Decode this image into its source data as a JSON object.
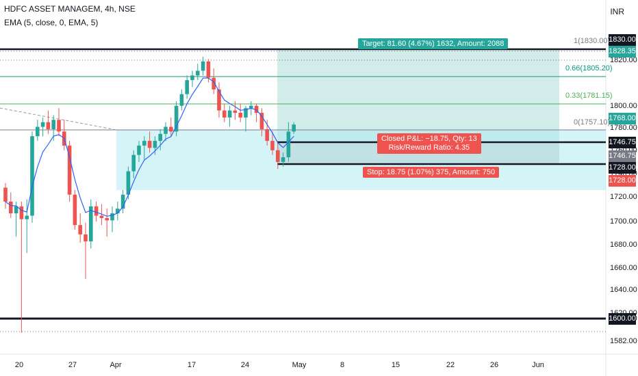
{
  "header": {
    "title": "HDFC ASSET MANAGEM, 4h, NSE",
    "indicator": "EMA (5, close, 0, EMA, 5)",
    "currency": "INR"
  },
  "position": {
    "target_label": "Target: 81.60 (4.67%) 1632, Amount: 2088",
    "closed_label": "Closed P&L: −18.75, Qty: 13",
    "ratio_label": "Risk/Reward Ratio: 4.35",
    "stop_label": "Stop: 18.75 (1.07%) 375, Amount: 750"
  },
  "fib_labels": [
    "1(1830.00)",
    "0.66(1805.20)",
    "0.33(1781.15)",
    "0(1757.10)"
  ],
  "price_axis": {
    "ticks": [
      "1820.00",
      "1800.00",
      "1780.00",
      "1760.00",
      "1740.00",
      "1720.00",
      "1700.00",
      "1680.00",
      "1660.00",
      "1640.00",
      "1620.00",
      "1600.00",
      "1582.00"
    ],
    "tags": {
      "t1830": "1830.00",
      "t1828": "1828.35",
      "t1768": "1768.00",
      "t1746a": "1746.75",
      "t1746b": "1746.75",
      "t1728a": "1728.00",
      "t1728b": "1728.00",
      "t1600": "1600.00"
    }
  },
  "time_axis": [
    "20",
    "27",
    "Apr",
    "17",
    "24",
    "May",
    "8",
    "15",
    "22",
    "26",
    "Jun"
  ],
  "colors": {
    "up": "#26a69a",
    "down": "#ef5350",
    "target_zone": "#b2dfdb",
    "stop_zone": "#cfcfcf",
    "ema": "#2962ff"
  },
  "chart_data": {
    "type": "candlestick",
    "series": [
      {
        "o": 1712,
        "h": 1716,
        "l": 1694,
        "c": 1700
      },
      {
        "o": 1700,
        "h": 1708,
        "l": 1686,
        "c": 1690
      },
      {
        "o": 1690,
        "h": 1700,
        "l": 1670,
        "c": 1696
      },
      {
        "o": 1696,
        "h": 1700,
        "l": 1588,
        "c": 1685
      },
      {
        "o": 1685,
        "h": 1702,
        "l": 1656,
        "c": 1688
      },
      {
        "o": 1688,
        "h": 1760,
        "l": 1682,
        "c": 1756
      },
      {
        "o": 1756,
        "h": 1770,
        "l": 1752,
        "c": 1764
      },
      {
        "o": 1764,
        "h": 1772,
        "l": 1756,
        "c": 1768
      },
      {
        "o": 1768,
        "h": 1778,
        "l": 1758,
        "c": 1762
      },
      {
        "o": 1762,
        "h": 1774,
        "l": 1752,
        "c": 1770
      },
      {
        "o": 1770,
        "h": 1780,
        "l": 1756,
        "c": 1760
      },
      {
        "o": 1760,
        "h": 1770,
        "l": 1744,
        "c": 1748
      },
      {
        "o": 1748,
        "h": 1752,
        "l": 1700,
        "c": 1706
      },
      {
        "o": 1706,
        "h": 1710,
        "l": 1676,
        "c": 1680
      },
      {
        "o": 1680,
        "h": 1690,
        "l": 1665,
        "c": 1672
      },
      {
        "o": 1672,
        "h": 1682,
        "l": 1634,
        "c": 1666
      },
      {
        "o": 1666,
        "h": 1702,
        "l": 1660,
        "c": 1696
      },
      {
        "o": 1696,
        "h": 1700,
        "l": 1683,
        "c": 1688
      },
      {
        "o": 1688,
        "h": 1698,
        "l": 1680,
        "c": 1686
      },
      {
        "o": 1686,
        "h": 1694,
        "l": 1670,
        "c": 1684
      },
      {
        "o": 1684,
        "h": 1696,
        "l": 1674,
        "c": 1690
      },
      {
        "o": 1690,
        "h": 1700,
        "l": 1684,
        "c": 1694
      },
      {
        "o": 1694,
        "h": 1710,
        "l": 1690,
        "c": 1706
      },
      {
        "o": 1706,
        "h": 1730,
        "l": 1702,
        "c": 1726
      },
      {
        "o": 1726,
        "h": 1744,
        "l": 1720,
        "c": 1740
      },
      {
        "o": 1740,
        "h": 1752,
        "l": 1734,
        "c": 1748
      },
      {
        "o": 1748,
        "h": 1756,
        "l": 1736,
        "c": 1752
      },
      {
        "o": 1752,
        "h": 1760,
        "l": 1742,
        "c": 1746
      },
      {
        "o": 1746,
        "h": 1756,
        "l": 1740,
        "c": 1752
      },
      {
        "o": 1752,
        "h": 1762,
        "l": 1744,
        "c": 1758
      },
      {
        "o": 1758,
        "h": 1768,
        "l": 1752,
        "c": 1764
      },
      {
        "o": 1764,
        "h": 1772,
        "l": 1756,
        "c": 1760
      },
      {
        "o": 1760,
        "h": 1786,
        "l": 1756,
        "c": 1782
      },
      {
        "o": 1782,
        "h": 1796,
        "l": 1778,
        "c": 1792
      },
      {
        "o": 1792,
        "h": 1808,
        "l": 1788,
        "c": 1804
      },
      {
        "o": 1804,
        "h": 1812,
        "l": 1798,
        "c": 1808
      },
      {
        "o": 1808,
        "h": 1818,
        "l": 1804,
        "c": 1812
      },
      {
        "o": 1812,
        "h": 1824,
        "l": 1808,
        "c": 1820
      },
      {
        "o": 1820,
        "h": 1822,
        "l": 1802,
        "c": 1806
      },
      {
        "o": 1806,
        "h": 1814,
        "l": 1792,
        "c": 1796
      },
      {
        "o": 1796,
        "h": 1802,
        "l": 1772,
        "c": 1778
      },
      {
        "o": 1778,
        "h": 1784,
        "l": 1768,
        "c": 1772
      },
      {
        "o": 1772,
        "h": 1782,
        "l": 1764,
        "c": 1778
      },
      {
        "o": 1778,
        "h": 1786,
        "l": 1770,
        "c": 1776
      },
      {
        "o": 1776,
        "h": 1784,
        "l": 1768,
        "c": 1772
      },
      {
        "o": 1772,
        "h": 1782,
        "l": 1760,
        "c": 1780
      },
      {
        "o": 1780,
        "h": 1786,
        "l": 1774,
        "c": 1782
      },
      {
        "o": 1782,
        "h": 1784,
        "l": 1768,
        "c": 1776
      },
      {
        "o": 1776,
        "h": 1780,
        "l": 1756,
        "c": 1762
      },
      {
        "o": 1762,
        "h": 1770,
        "l": 1748,
        "c": 1752
      },
      {
        "o": 1752,
        "h": 1760,
        "l": 1740,
        "c": 1744
      },
      {
        "o": 1744,
        "h": 1750,
        "l": 1728,
        "c": 1734
      },
      {
        "o": 1734,
        "h": 1742,
        "l": 1730,
        "c": 1738
      },
      {
        "o": 1738,
        "h": 1768,
        "l": 1734,
        "c": 1760
      },
      {
        "o": 1760,
        "h": 1768,
        "l": 1758,
        "c": 1766
      }
    ],
    "y_range": [
      1580,
      1840
    ],
    "levels": {
      "target": 1828.35,
      "entry": 1746.75,
      "stop": 1728.0,
      "support": 1600.0,
      "resistance": 1830.0
    }
  }
}
